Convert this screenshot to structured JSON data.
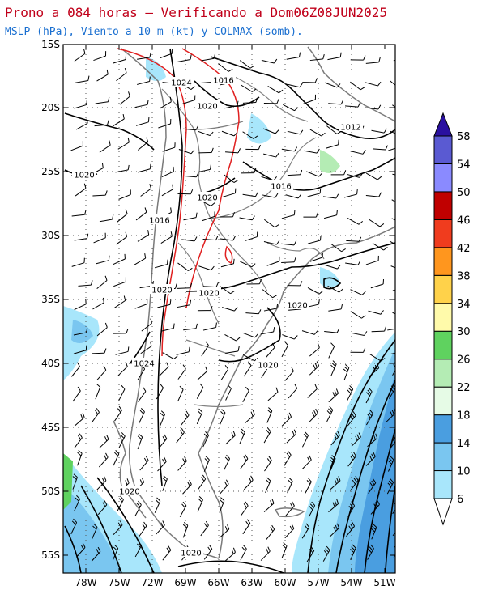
{
  "title_line1": "Prono a 084 horas — Verificando a Dom06Z08JUN2025",
  "title_line2": "MSLP (hPa), Viento a 10 m (kt) y COLMAX (somb).",
  "lat_labels": [
    "15S",
    "20S",
    "25S",
    "30S",
    "35S",
    "40S",
    "45S",
    "50S",
    "55S"
  ],
  "lon_labels": [
    "78W",
    "75W",
    "72W",
    "69W",
    "66W",
    "63W",
    "60W",
    "57W",
    "54W",
    "51W"
  ],
  "isobar_labels": [
    "1024",
    "1016",
    "1020",
    "1012",
    "1020",
    "1016",
    "1020",
    "1016",
    "1020",
    "1020",
    "1020",
    "1024",
    "1020",
    "1020",
    "1020"
  ],
  "colorbar": {
    "levels": [
      "6",
      "10",
      "14",
      "18",
      "22",
      "26",
      "30",
      "34",
      "38",
      "42",
      "46",
      "50",
      "54",
      "58"
    ],
    "colors": [
      "#d9fbff",
      "#a8e6fb",
      "#7ac6f0",
      "#4a9ee0",
      "#e6fbe6",
      "#b4ecb4",
      "#5fd25f",
      "#fffaaa",
      "#ffd24a",
      "#ff961e",
      "#f03c1e",
      "#c00000",
      "#8a8aff",
      "#5a5ad2",
      "#2a10a0"
    ]
  },
  "colors": {
    "isobar": "#000000",
    "colmax_contour": "#e02020",
    "coast": "#7a7a7a",
    "border": "#808080",
    "barb": "#000000"
  }
}
